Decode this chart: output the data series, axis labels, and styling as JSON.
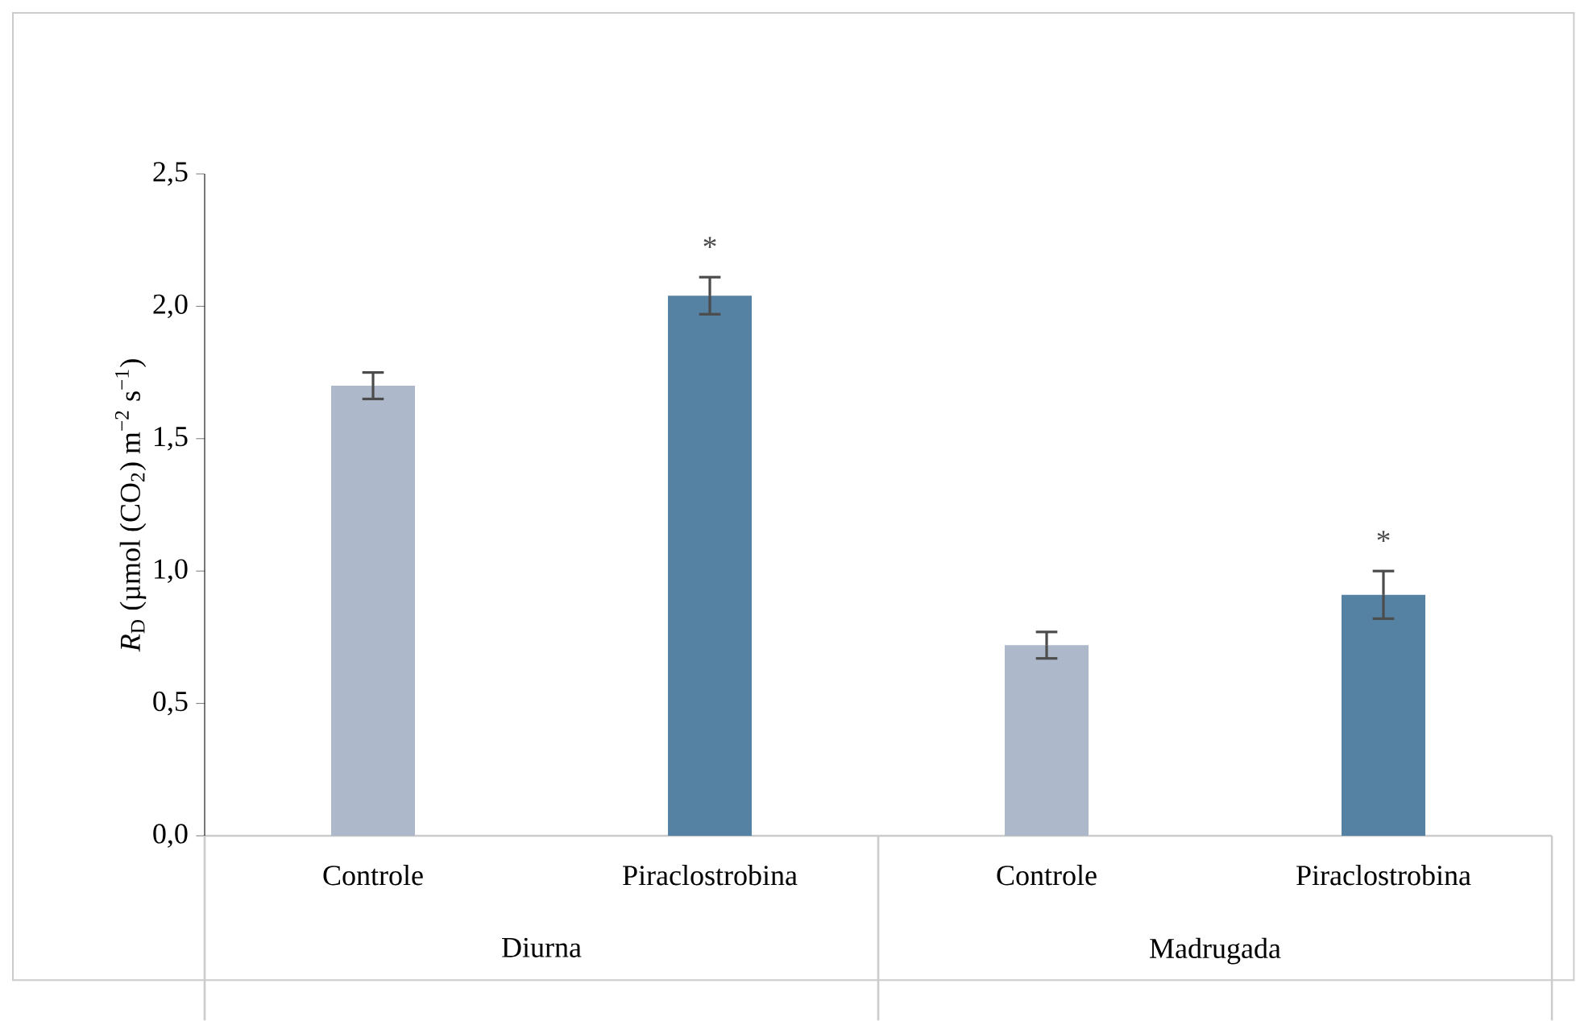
{
  "chart_data": {
    "type": "bar",
    "ylabel": "*R*$_{D}$ (µmol (CO$_{2}$) m$^{−2}$ s$^{−1}$)",
    "categories": [
      "Controle",
      "Piraclostrobina",
      "Controle",
      "Piraclostrobina"
    ],
    "values": [
      1.7,
      2.04,
      0.72,
      0.91
    ],
    "errors": [
      0.05,
      0.07,
      0.05,
      0.09
    ],
    "colors": [
      "#adb9ca",
      "#5581a3",
      "#adb9ca",
      "#5581a3"
    ],
    "value_labels": [
      null,
      "*",
      null,
      "*"
    ],
    "annotations": [
      "Diurna",
      "Madrugada"
    ],
    "ylim": [
      0,
      2.5
    ],
    "yticks": [
      {
        "value": 0,
        "label": "0,0"
      },
      {
        "value": 0.5,
        "label": "0,5"
      },
      {
        "value": 1,
        "label": "1,0"
      },
      {
        "value": 1.5,
        "label": "1,5"
      },
      {
        "value": 2,
        "label": "2,0"
      },
      {
        "value": 2.5,
        "label": "2,5"
      }
    ],
    "grid": false
  }
}
